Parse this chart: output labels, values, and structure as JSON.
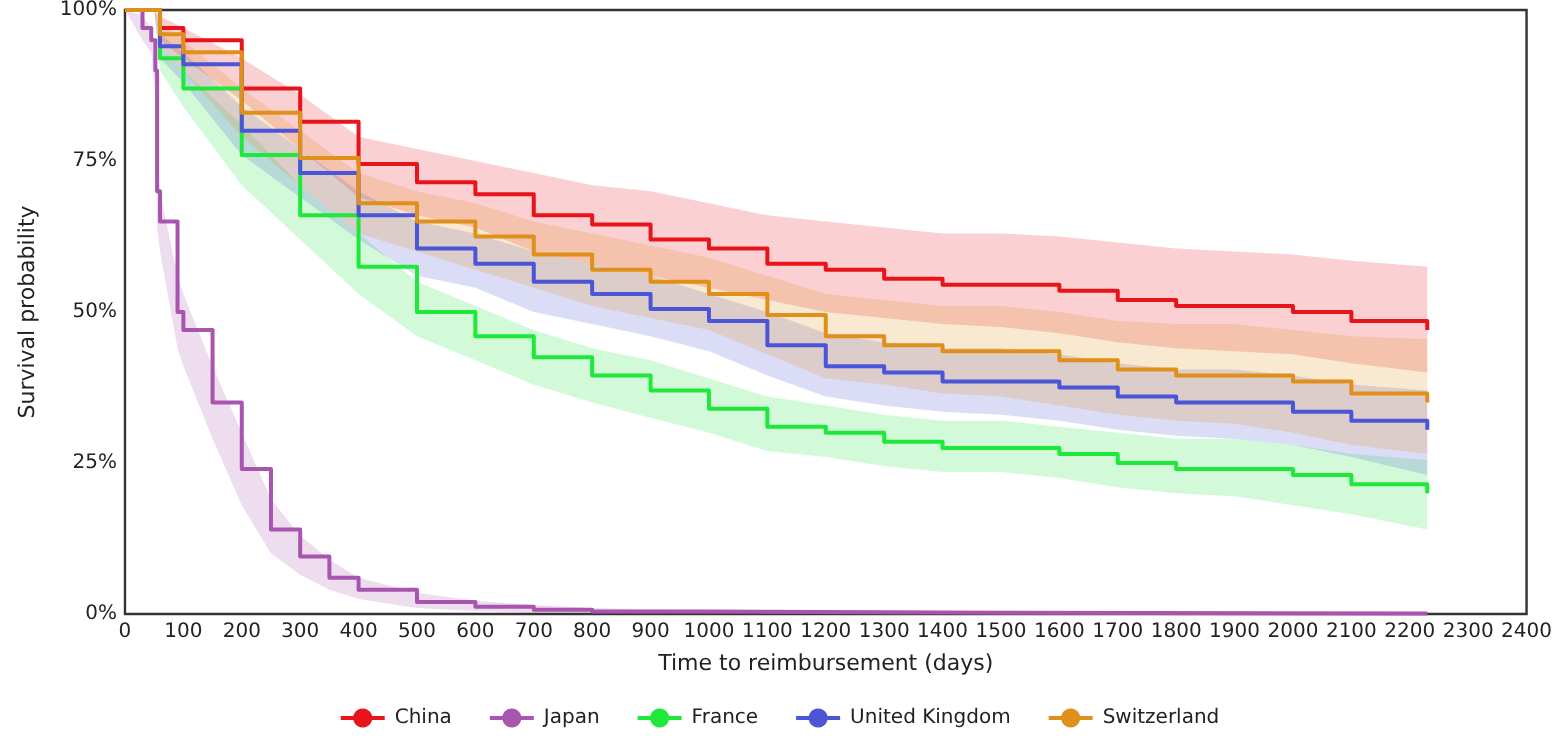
{
  "chart_data": {
    "type": "step",
    "xlabel": "Time to reimbursement (days)",
    "ylabel": "Survival probability",
    "x": [
      0,
      50,
      60,
      100,
      200,
      300,
      400,
      500,
      600,
      700,
      800,
      900,
      1000,
      1100,
      1200,
      1300,
      1400,
      1500,
      1600,
      1700,
      1800,
      1900,
      2000,
      2100,
      2230
    ],
    "series": [
      {
        "name": "China",
        "color": "#e8141c",
        "values": [
          100,
          100,
          97,
          95,
          87,
          81.5,
          74.5,
          71.5,
          69.5,
          66,
          64.5,
          62,
          60.5,
          58,
          57,
          55.5,
          54.5,
          54.5,
          53.5,
          52,
          51,
          51,
          50,
          48.5,
          47
        ],
        "upper": [
          100,
          100,
          99,
          97,
          92,
          86,
          79,
          77,
          75,
          73,
          71,
          70,
          68,
          66,
          65,
          64,
          63,
          63,
          62.5,
          61.5,
          60.5,
          60,
          59.5,
          58.5,
          57.5
        ],
        "lower": [
          100,
          100,
          95,
          92,
          85,
          77,
          69,
          66,
          64,
          60,
          58,
          56,
          54,
          52,
          50,
          49,
          48,
          47.5,
          46.5,
          45,
          44,
          43.5,
          43,
          41.5,
          40
        ]
      },
      {
        "name": "Japan",
        "color": "#a855b0",
        "x": [
          0,
          30,
          45,
          52,
          55,
          60,
          90,
          100,
          150,
          200,
          250,
          300,
          350,
          400,
          500,
          600,
          700,
          800,
          1000,
          1500,
          2230
        ],
        "values": [
          100,
          97,
          95,
          90,
          70,
          65,
          50,
          47,
          35,
          24,
          14,
          9.5,
          6,
          4,
          2,
          1.2,
          0.7,
          0.4,
          0.2,
          0.1,
          0
        ],
        "upper": [
          100,
          99,
          97,
          94,
          76,
          70,
          56,
          53,
          41,
          30,
          19,
          13,
          9,
          6,
          3.5,
          2.2,
          1.5,
          1,
          0.6,
          0.3,
          0.1
        ],
        "lower": [
          100,
          95,
          93,
          86,
          64,
          60,
          44,
          41,
          29,
          18,
          10,
          6.5,
          4,
          2.5,
          1,
          0.5,
          0.2,
          0.1,
          0,
          0,
          0
        ]
      },
      {
        "name": "France",
        "color": "#1ee83a",
        "values": [
          100,
          100,
          92,
          87,
          76,
          66,
          57.5,
          50,
          46,
          42.5,
          39.5,
          37,
          34,
          31,
          30,
          28.5,
          27.5,
          27.5,
          26.5,
          25,
          24,
          24,
          23,
          21.5,
          20
        ],
        "upper": [
          100,
          100,
          94,
          90,
          81,
          71,
          63,
          55,
          51,
          47,
          44,
          42,
          39,
          36,
          34.5,
          33,
          32,
          32,
          31,
          30,
          29,
          29,
          28,
          26.5,
          25.5
        ],
        "lower": [
          100,
          100,
          90,
          84,
          71,
          62,
          53,
          46,
          42,
          38,
          35,
          32.5,
          30,
          27,
          26,
          24.5,
          23.5,
          23.5,
          22.5,
          21,
          20,
          19.5,
          18,
          16.5,
          14
        ]
      },
      {
        "name": "United Kingdom",
        "color": "#4a55d8",
        "values": [
          100,
          100,
          94,
          91,
          80,
          73,
          66,
          60.5,
          58,
          55,
          53,
          50.5,
          48.5,
          44.5,
          41,
          40,
          38.5,
          38.5,
          37.5,
          36,
          35,
          35,
          33.5,
          32,
          30.5
        ],
        "upper": [
          100,
          100,
          96,
          93,
          84,
          77,
          70,
          65,
          63,
          60,
          58,
          56,
          53,
          50,
          46.5,
          45,
          44,
          44,
          43,
          41.5,
          40.5,
          40.5,
          39.5,
          38,
          37
        ],
        "lower": [
          100,
          100,
          92,
          88,
          76,
          69,
          62,
          56,
          54,
          50,
          48,
          46,
          43.5,
          39.5,
          36,
          34.5,
          33.5,
          33,
          32,
          30.5,
          29.5,
          29,
          28,
          26,
          23
        ]
      },
      {
        "name": "Switzerland",
        "color": "#e0901a",
        "values": [
          100,
          100,
          96,
          93,
          83,
          75.5,
          68,
          65,
          62.5,
          59.5,
          57,
          55,
          53,
          49.5,
          46,
          44.5,
          43.5,
          43.5,
          42,
          40.5,
          39.5,
          39.5,
          38.5,
          36.5,
          35
        ],
        "upper": [
          100,
          100,
          98,
          95,
          87,
          80,
          73,
          70,
          68,
          65,
          63,
          61,
          59,
          56,
          53,
          52,
          51,
          51,
          50,
          48.5,
          48,
          48,
          47,
          46,
          45.5
        ],
        "lower": [
          100,
          100,
          94,
          90,
          79,
          71,
          63,
          60,
          57,
          54,
          51,
          49,
          47,
          43,
          39,
          38,
          36.5,
          36,
          34.5,
          33,
          32,
          31.5,
          30,
          28,
          26.5
        ]
      }
    ],
    "xlim": [
      0,
      2400
    ],
    "xticks": [
      0,
      100,
      200,
      300,
      400,
      500,
      600,
      700,
      800,
      900,
      1000,
      1100,
      1200,
      1300,
      1400,
      1500,
      1600,
      1700,
      1800,
      1900,
      2000,
      2100,
      2200,
      2300,
      2400
    ],
    "ylim": [
      0,
      100
    ],
    "yticks": [
      {
        "value": 0,
        "label": "0%"
      },
      {
        "value": 25,
        "label": "25%"
      },
      {
        "value": 50,
        "label": "50%"
      },
      {
        "value": 75,
        "label": "75%"
      },
      {
        "value": 100,
        "label": "100%"
      }
    ],
    "grid": false,
    "legend": "bottom",
    "marker": "none"
  }
}
